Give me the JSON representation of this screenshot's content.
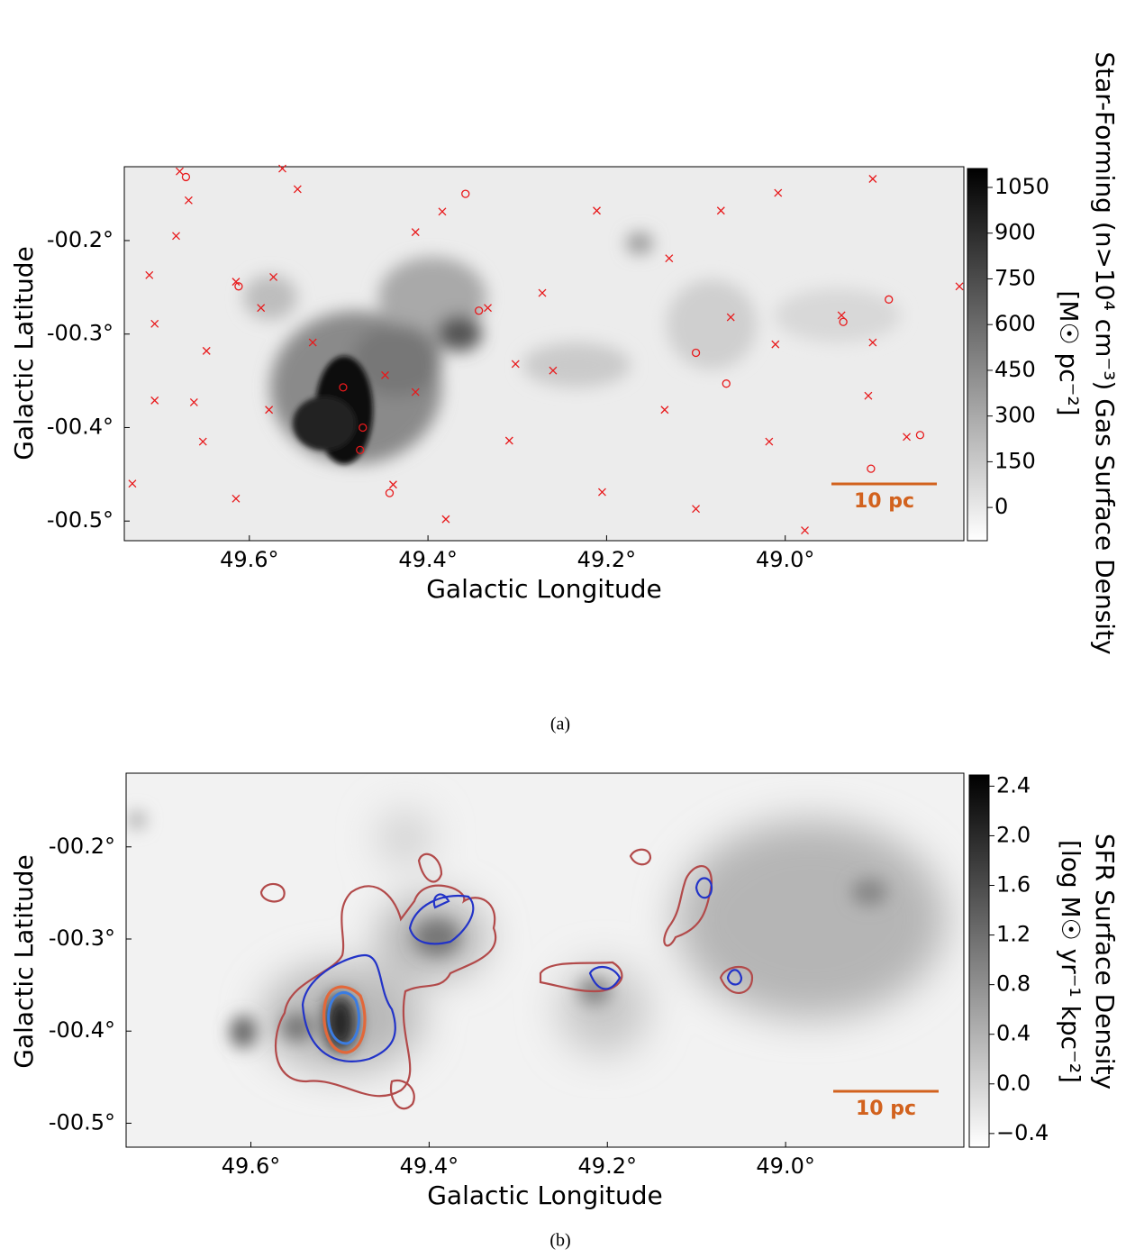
{
  "chart_data": [
    {
      "type": "scatter",
      "caption": "(a)",
      "xlabel": "Galactic Longitude",
      "ylabel": "Galactic Latitude",
      "xlim": [
        49.74,
        48.8
      ],
      "ylim": [
        -0.521,
        -0.121
      ],
      "xticks": [
        {
          "value": 49.6,
          "label": "49.6°"
        },
        {
          "value": 49.4,
          "label": "49.4°"
        },
        {
          "value": 49.2,
          "label": "49.2°"
        },
        {
          "value": 49.0,
          "label": "49.0°"
        }
      ],
      "yticks": [
        {
          "value": -0.2,
          "label": "-00.2°"
        },
        {
          "value": -0.3,
          "label": "-00.3°"
        },
        {
          "value": -0.4,
          "label": "-00.4°"
        },
        {
          "value": -0.5,
          "label": "-00.5°"
        }
      ],
      "scale_bar": "10 pc",
      "scale_bar_color": "#d2621e",
      "colorbar": {
        "label": [
          "Star-Forming (n>10⁴ cm⁻³) Gas Surface Density",
          "[M☉ pc⁻²]"
        ],
        "lim": [
          -109,
          1112
        ],
        "ticks": [
          0,
          150,
          300,
          450,
          600,
          750,
          900,
          1050
        ]
      },
      "series": [
        {
          "marker": "x",
          "color": "#e8191b",
          "x": [
            49.678,
            49.563,
            49.546,
            49.668,
            49.712,
            49.682,
            49.615,
            49.573,
            49.587,
            49.706,
            49.648,
            49.662,
            49.706,
            49.652,
            49.615,
            49.731,
            49.578,
            49.529,
            49.448,
            49.414,
            49.439,
            49.414,
            49.384,
            49.333,
            49.302,
            49.272,
            49.26,
            49.211,
            49.13,
            49.072,
            49.008,
            48.902,
            48.805,
            48.937,
            48.907,
            48.864,
            49.018,
            49.1,
            49.205,
            49.309,
            49.38,
            48.978,
            48.902,
            49.011,
            49.061,
            49.135
          ],
          "y": [
            -0.126,
            -0.123,
            -0.145,
            -0.157,
            -0.237,
            -0.195,
            -0.244,
            -0.239,
            -0.272,
            -0.289,
            -0.318,
            -0.373,
            -0.371,
            -0.415,
            -0.476,
            -0.46,
            -0.381,
            -0.309,
            -0.344,
            -0.362,
            -0.461,
            -0.191,
            -0.169,
            -0.272,
            -0.332,
            -0.256,
            -0.339,
            -0.168,
            -0.219,
            -0.168,
            -0.149,
            -0.134,
            -0.249,
            -0.28,
            -0.366,
            -0.41,
            -0.415,
            -0.487,
            -0.469,
            -0.414,
            -0.498,
            -0.51,
            -0.309,
            -0.311,
            -0.282,
            -0.381
          ]
        },
        {
          "marker": "o",
          "color": "#e8191b",
          "x": [
            49.671,
            49.358,
            49.612,
            49.343,
            49.495,
            49.473,
            49.476,
            49.443,
            49.1,
            49.066,
            48.935,
            48.884,
            48.849,
            48.904
          ],
          "y": [
            -0.132,
            -0.15,
            -0.249,
            -0.275,
            -0.357,
            -0.4,
            -0.424,
            -0.47,
            -0.32,
            -0.353,
            -0.287,
            -0.263,
            -0.408,
            -0.444
          ]
        }
      ]
    },
    {
      "type": "image",
      "caption": "(b)",
      "xlabel": "Galactic Longitude",
      "ylabel": "Galactic Latitude",
      "xlim": [
        49.74,
        48.8
      ],
      "ylim": [
        -0.526,
        -0.12
      ],
      "xticks": [
        {
          "value": 49.6,
          "label": "49.6°"
        },
        {
          "value": 49.4,
          "label": "49.4°"
        },
        {
          "value": 49.2,
          "label": "49.2°"
        },
        {
          "value": 49.0,
          "label": "49.0°"
        }
      ],
      "yticks": [
        {
          "value": -0.2,
          "label": "-00.2°"
        },
        {
          "value": -0.3,
          "label": "-00.3°"
        },
        {
          "value": -0.4,
          "label": "-00.4°"
        },
        {
          "value": -0.5,
          "label": "-00.5°"
        }
      ],
      "scale_bar": "10 pc",
      "scale_bar_color": "#d2621e",
      "colorbar": {
        "label": [
          "SFR Surface Density",
          "[log M☉ yr⁻¹ kpc⁻²]"
        ],
        "lim": [
          -0.51,
          2.49
        ],
        "ticks": [
          {
            "value": -0.4,
            "label": "−0.4"
          },
          {
            "value": 0,
            "label": "0.0"
          },
          0.4,
          0.8,
          1.2,
          1.6,
          {
            "value": 2,
            "label": "2.0"
          },
          2.4
        ]
      }
    }
  ]
}
